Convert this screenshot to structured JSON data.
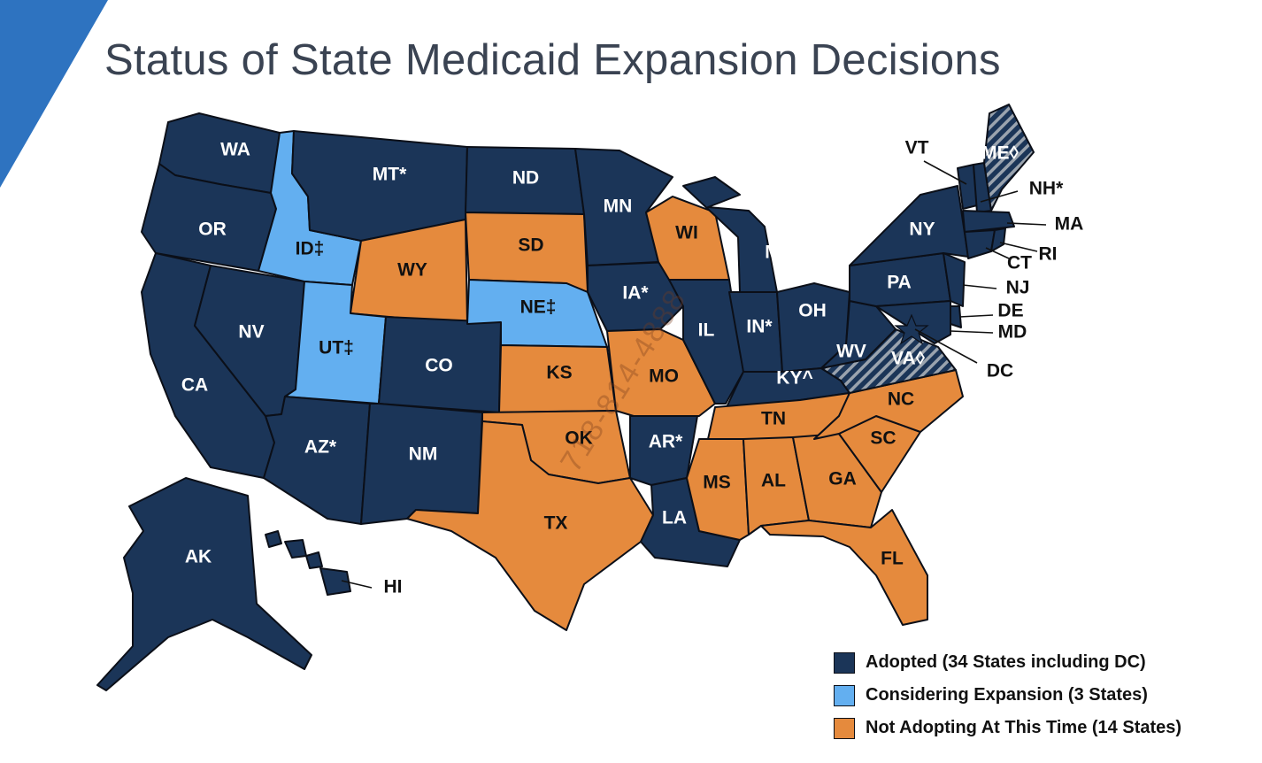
{
  "title": "Status of State Medicaid Expansion Decisions",
  "colors": {
    "adopted": "#1b3558",
    "considering": "#63aff0",
    "not_adopting": "#e58a3d",
    "pending_hatch": "#5f6e82",
    "accent": "#2e73c0"
  },
  "legend": [
    {
      "key": "adopted",
      "label": "Adopted (34 States including DC)"
    },
    {
      "key": "considering",
      "label": "Considering Expansion (3 States)"
    },
    {
      "key": "not_adopting",
      "label": "Not Adopting At This Time (14 States)"
    }
  ],
  "watermark": "718-814-4888",
  "states": {
    "WA": {
      "label": "WA",
      "status": "adopted"
    },
    "OR": {
      "label": "OR",
      "status": "adopted"
    },
    "CA": {
      "label": "CA",
      "status": "adopted"
    },
    "NV": {
      "label": "NV",
      "status": "adopted"
    },
    "ID": {
      "label": "ID‡",
      "status": "considering"
    },
    "MT": {
      "label": "MT*",
      "status": "adopted"
    },
    "WY": {
      "label": "WY",
      "status": "not_adopting"
    },
    "UT": {
      "label": "UT‡",
      "status": "considering"
    },
    "AZ": {
      "label": "AZ*",
      "status": "adopted"
    },
    "CO": {
      "label": "CO",
      "status": "adopted"
    },
    "NM": {
      "label": "NM",
      "status": "adopted"
    },
    "ND": {
      "label": "ND",
      "status": "adopted"
    },
    "SD": {
      "label": "SD",
      "status": "not_adopting"
    },
    "NE": {
      "label": "NE‡",
      "status": "considering"
    },
    "KS": {
      "label": "KS",
      "status": "not_adopting"
    },
    "OK": {
      "label": "OK",
      "status": "not_adopting"
    },
    "TX": {
      "label": "TX",
      "status": "not_adopting"
    },
    "MN": {
      "label": "MN",
      "status": "adopted"
    },
    "IA": {
      "label": "IA*",
      "status": "adopted"
    },
    "MO": {
      "label": "MO",
      "status": "not_adopting"
    },
    "AR": {
      "label": "AR*",
      "status": "adopted"
    },
    "LA": {
      "label": "LA",
      "status": "adopted"
    },
    "WI": {
      "label": "WI",
      "status": "not_adopting"
    },
    "IL": {
      "label": "IL",
      "status": "adopted"
    },
    "MI": {
      "label": "MI*",
      "status": "adopted"
    },
    "IN": {
      "label": "IN*",
      "status": "adopted"
    },
    "OH": {
      "label": "OH",
      "status": "adopted"
    },
    "KY": {
      "label": "KY^",
      "status": "adopted"
    },
    "TN": {
      "label": "TN",
      "status": "not_adopting"
    },
    "MS": {
      "label": "MS",
      "status": "not_adopting"
    },
    "AL": {
      "label": "AL",
      "status": "not_adopting"
    },
    "GA": {
      "label": "GA",
      "status": "not_adopting"
    },
    "FL": {
      "label": "FL",
      "status": "not_adopting"
    },
    "SC": {
      "label": "SC",
      "status": "not_adopting"
    },
    "NC": {
      "label": "NC",
      "status": "not_adopting"
    },
    "VA": {
      "label": "VA◊",
      "status": "pending"
    },
    "WV": {
      "label": "WV",
      "status": "adopted"
    },
    "PA": {
      "label": "PA",
      "status": "adopted"
    },
    "NY": {
      "label": "NY",
      "status": "adopted"
    },
    "VT": {
      "label": "VT",
      "status": "adopted"
    },
    "NH": {
      "label": "NH*",
      "status": "adopted"
    },
    "ME": {
      "label": "ME◊",
      "status": "pending"
    },
    "MA": {
      "label": "MA",
      "status": "adopted"
    },
    "RI": {
      "label": "RI",
      "status": "adopted"
    },
    "CT": {
      "label": "CT",
      "status": "adopted"
    },
    "NJ": {
      "label": "NJ",
      "status": "adopted"
    },
    "DE": {
      "label": "DE",
      "status": "adopted"
    },
    "MD": {
      "label": "MD",
      "status": "adopted"
    },
    "DC": {
      "label": "DC",
      "status": "adopted"
    },
    "AK": {
      "label": "AK",
      "status": "adopted"
    },
    "HI": {
      "label": "HI",
      "status": "adopted"
    }
  }
}
